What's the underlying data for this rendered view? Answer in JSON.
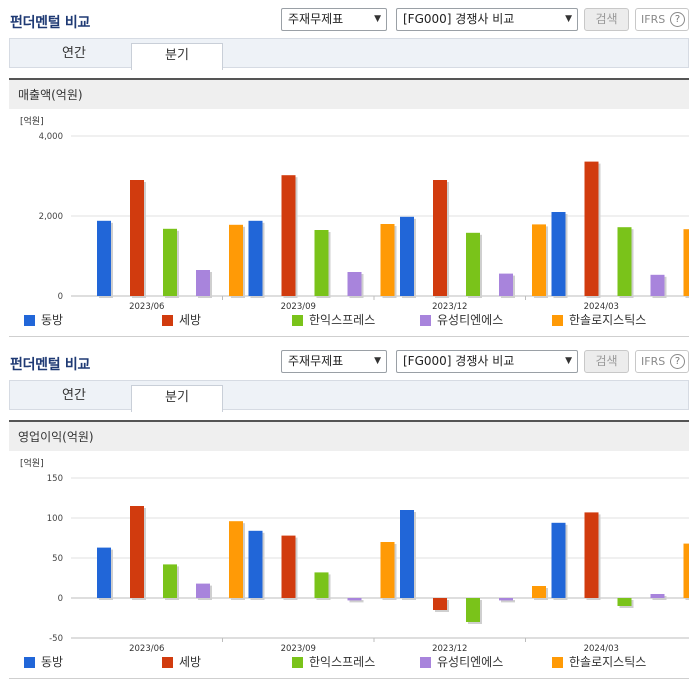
{
  "colors": {
    "dongbang": "#2166d8",
    "sebang": "#d13b0e",
    "hanik": "#7ac31a",
    "usung": "#a884dc",
    "hansol": "#ff9a06"
  },
  "legend": [
    {
      "key": "dongbang",
      "label": "동방"
    },
    {
      "key": "sebang",
      "label": "세방"
    },
    {
      "key": "hanik",
      "label": "한익스프레스"
    },
    {
      "key": "usung",
      "label": "유성티엔에스"
    },
    {
      "key": "hansol",
      "label": "한솔로지스틱스"
    }
  ],
  "panels": [
    {
      "title": "펀더멘털 비교",
      "select1": "주재무제표",
      "select2": "[FG000] 경쟁사 비교",
      "search_label": "검색",
      "ifrs_label": "IFRS",
      "ifrs_help": "?",
      "tabs": [
        "연간",
        "분기"
      ],
      "active_tab": "분기",
      "band_label": "매출액(억원)",
      "chart_data": {
        "type": "bar",
        "unit_label": "[억원]",
        "categories": [
          "2023/06",
          "2023/09",
          "2023/12",
          "2024/03"
        ],
        "ylim": [
          0,
          4000
        ],
        "yticks": [
          "4,000",
          "2,000",
          "0"
        ],
        "ytick_values": [
          4000,
          2000,
          0
        ],
        "series": [
          {
            "name": "동방",
            "key": "dongbang",
            "values": [
              1880,
              1880,
              1980,
              2100
            ]
          },
          {
            "name": "세방",
            "key": "sebang",
            "values": [
              2900,
              3020,
              2900,
              3360
            ]
          },
          {
            "name": "한익스프레스",
            "key": "hanik",
            "values": [
              1680,
              1650,
              1580,
              1720
            ]
          },
          {
            "name": "유성티엔에스",
            "key": "usung",
            "values": [
              650,
              600,
              560,
              530
            ]
          },
          {
            "name": "한솔로지스틱스",
            "key": "hansol",
            "values": [
              1780,
              1800,
              1790,
              1670
            ]
          }
        ]
      }
    },
    {
      "title": "펀더멘털 비교",
      "select1": "주재무제표",
      "select2": "[FG000] 경쟁사 비교",
      "search_label": "검색",
      "ifrs_label": "IFRS",
      "ifrs_help": "?",
      "tabs": [
        "연간",
        "분기"
      ],
      "active_tab": "분기",
      "band_label": "영업이익(억원)",
      "chart_data": {
        "type": "bar",
        "unit_label": "[억원]",
        "categories": [
          "2023/06",
          "2023/09",
          "2023/12",
          "2024/03"
        ],
        "ylim": [
          -50,
          150
        ],
        "yticks": [
          "150",
          "100",
          "50",
          "0",
          "-50"
        ],
        "ytick_values": [
          150,
          100,
          50,
          0,
          -50
        ],
        "series": [
          {
            "name": "동방",
            "key": "dongbang",
            "values": [
              63,
              84,
              110,
              94
            ]
          },
          {
            "name": "세방",
            "key": "sebang",
            "values": [
              115,
              78,
              -15,
              107
            ]
          },
          {
            "name": "한익스프레스",
            "key": "hanik",
            "values": [
              42,
              32,
              -30,
              -10
            ]
          },
          {
            "name": "유성티엔에스",
            "key": "usung",
            "values": [
              18,
              -3,
              -3,
              5
            ]
          },
          {
            "name": "한솔로지스틱스",
            "key": "hansol",
            "values": [
              96,
              70,
              15,
              68
            ]
          }
        ]
      }
    }
  ]
}
